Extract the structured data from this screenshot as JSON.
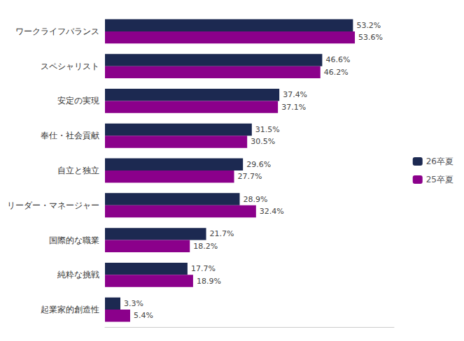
{
  "chart_data": {
    "type": "bar",
    "orientation": "horizontal",
    "categories": [
      "ワークライフバランス",
      "スペシャリスト",
      "安定の実現",
      "奉仕・社会貢献",
      "自立と独立",
      "リーダー・マネージャー",
      "国際的な職業",
      "純粋な挑戦",
      "起業家的創造性"
    ],
    "series": [
      {
        "name": "26卒夏",
        "color": "#1c2951",
        "values": [
          53.2,
          46.6,
          37.4,
          31.5,
          29.6,
          28.9,
          21.7,
          17.7,
          3.3
        ],
        "value_labels": [
          "53.2%",
          "46.6%",
          "37.4%",
          "31.5%",
          "29.6%",
          "28.9%",
          "21.7%",
          "17.7%",
          "3.3%"
        ]
      },
      {
        "name": "25卒夏",
        "color": "#8b008b",
        "values": [
          53.6,
          46.2,
          37.1,
          30.5,
          27.7,
          32.4,
          18.2,
          18.9,
          5.4
        ],
        "value_labels": [
          "53.6%",
          "46.2%",
          "37.1%",
          "30.5%",
          "27.7%",
          "32.4%",
          "18.2%",
          "18.9%",
          "5.4%"
        ]
      }
    ],
    "xlim": [
      0,
      62
    ],
    "data_labels": true,
    "tick_labels": "y",
    "legend": "right",
    "grid": false
  }
}
